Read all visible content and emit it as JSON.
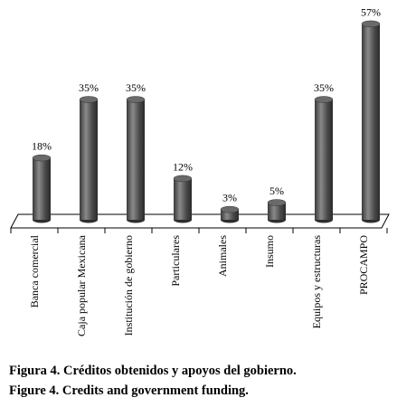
{
  "chart_data": {
    "type": "bar",
    "categories": [
      "Banca comercial",
      "Caja popular Mexicana",
      "Institución de gobierno",
      "Particulares",
      "Animales",
      "Insumo",
      "Equipos y estructuras",
      "PROCAMPO"
    ],
    "values": [
      18,
      35,
      35,
      12,
      3,
      5,
      35,
      57
    ],
    "value_labels": [
      "18%",
      "35%",
      "35%",
      "12%",
      "3%",
      "5%",
      "35%",
      "57%"
    ],
    "color": "#555555",
    "caption": [
      "Figura 4. Créditos obtenidos y apoyos del gobierno.",
      "Figure 4. Credits and government funding."
    ]
  }
}
